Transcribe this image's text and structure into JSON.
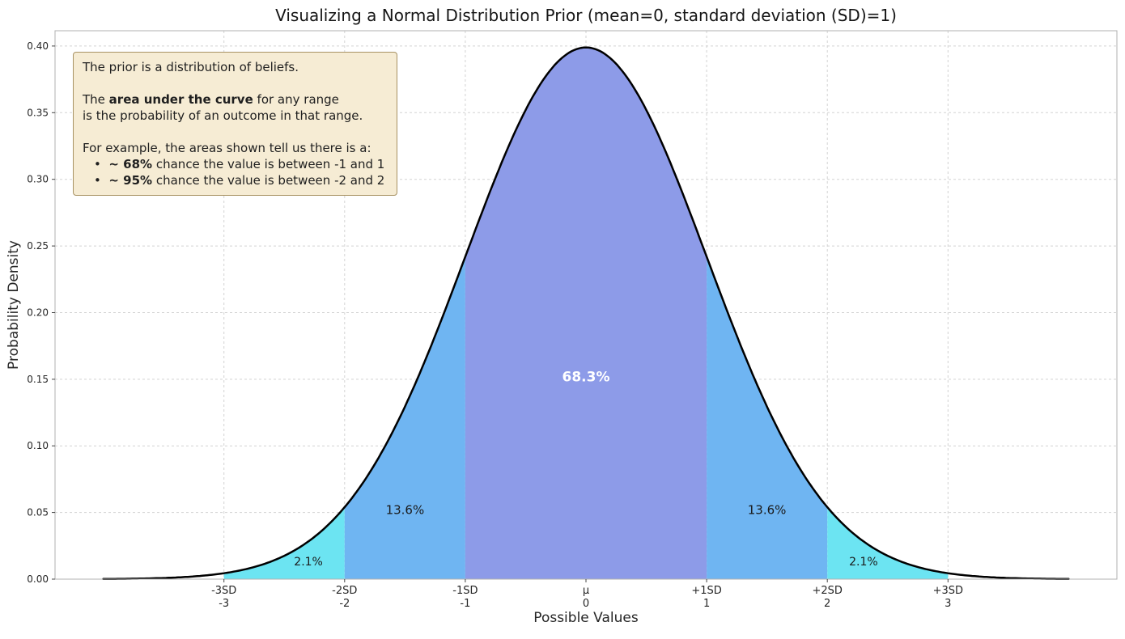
{
  "chart_data": {
    "type": "area",
    "title": "Visualizing a Normal Distribution Prior (mean=0, standard deviation (SD)=1)",
    "xlabel": "Possible Values",
    "ylabel": "Probability Density",
    "distribution": {
      "name": "normal",
      "mean": 0,
      "sd": 1,
      "peak_density": 0.3989
    },
    "xlim": [
      -4.4,
      4.4
    ],
    "ylim": [
      0,
      0.4115
    ],
    "curve_range": [
      -4,
      4
    ],
    "curve_color": "#000000",
    "grid": true,
    "legend": "none",
    "y_ticks": [
      {
        "value": 0.0,
        "label": "0.00"
      },
      {
        "value": 0.05,
        "label": "0.05"
      },
      {
        "value": 0.1,
        "label": "0.10"
      },
      {
        "value": 0.15,
        "label": "0.15"
      },
      {
        "value": 0.2,
        "label": "0.20"
      },
      {
        "value": 0.25,
        "label": "0.25"
      },
      {
        "value": 0.3,
        "label": "0.30"
      },
      {
        "value": 0.35,
        "label": "0.35"
      },
      {
        "value": 0.4,
        "label": "0.40"
      }
    ],
    "x_ticks": [
      {
        "value": -3,
        "sd_label": "-3SD",
        "num_label": "-3"
      },
      {
        "value": -2,
        "sd_label": "-2SD",
        "num_label": "-2"
      },
      {
        "value": -1,
        "sd_label": "-1SD",
        "num_label": "-1"
      },
      {
        "value": 0,
        "sd_label": "μ",
        "num_label": "0"
      },
      {
        "value": 1,
        "sd_label": "+1SD",
        "num_label": "1"
      },
      {
        "value": 2,
        "sd_label": "+2SD",
        "num_label": "2"
      },
      {
        "value": 3,
        "sd_label": "+3SD",
        "num_label": "3"
      }
    ],
    "regions": [
      {
        "range": [
          -3,
          -2
        ],
        "probability": "2.1%",
        "color": "#6ce4f2",
        "label": "2.1%",
        "label_x": -2.3,
        "label_y": 0.014,
        "label_color": "#1a1a1a",
        "label_size": 14,
        "label_bold": false
      },
      {
        "range": [
          -2,
          -1
        ],
        "probability": "13.6%",
        "color": "#6fb5f2",
        "label": "13.6%",
        "label_x": -1.5,
        "label_y": 0.0525,
        "label_color": "#1a1a1a",
        "label_size": 15,
        "label_bold": false
      },
      {
        "range": [
          -1,
          1
        ],
        "probability": "68.3%",
        "color": "#8d9be8",
        "label": "68.3%",
        "label_x": 0,
        "label_y": 0.152,
        "label_color": "#ffffff",
        "label_size": 17,
        "label_bold": true
      },
      {
        "range": [
          1,
          2
        ],
        "probability": "13.6%",
        "color": "#6fb5f2",
        "label": "13.6%",
        "label_x": 1.5,
        "label_y": 0.0525,
        "label_color": "#1a1a1a",
        "label_size": 15,
        "label_bold": false
      },
      {
        "range": [
          2,
          3
        ],
        "probability": "2.1%",
        "color": "#6ce4f2",
        "label": "2.1%",
        "label_x": 2.3,
        "label_y": 0.014,
        "label_color": "#1a1a1a",
        "label_size": 14,
        "label_bold": false
      }
    ]
  },
  "annotation": {
    "bg_color": "#f6ecd4",
    "border_color": "#a89263",
    "lines": [
      {
        "indent": false,
        "segments": [
          {
            "text": "The prior is a distribution of beliefs.",
            "bold": false
          }
        ]
      },
      {
        "indent": false,
        "segments": []
      },
      {
        "indent": false,
        "segments": [
          {
            "text": "The ",
            "bold": false
          },
          {
            "text": "area under the curve",
            "bold": true
          },
          {
            "text": " for any range",
            "bold": false
          }
        ]
      },
      {
        "indent": false,
        "segments": [
          {
            "text": "is the probability of an outcome in that range.",
            "bold": false
          }
        ]
      },
      {
        "indent": false,
        "segments": []
      },
      {
        "indent": false,
        "segments": [
          {
            "text": "For example, the areas shown tell us there is a:",
            "bold": false
          }
        ]
      },
      {
        "indent": true,
        "segments": [
          {
            "text": "•  ",
            "bold": false
          },
          {
            "text": "~ 68%",
            "bold": true
          },
          {
            "text": " chance the value is between -1 and 1",
            "bold": false
          }
        ]
      },
      {
        "indent": true,
        "segments": [
          {
            "text": "•  ",
            "bold": false
          },
          {
            "text": "~ 95%",
            "bold": true
          },
          {
            "text": " chance the value is between -2 and 2",
            "bold": false
          }
        ]
      }
    ]
  }
}
